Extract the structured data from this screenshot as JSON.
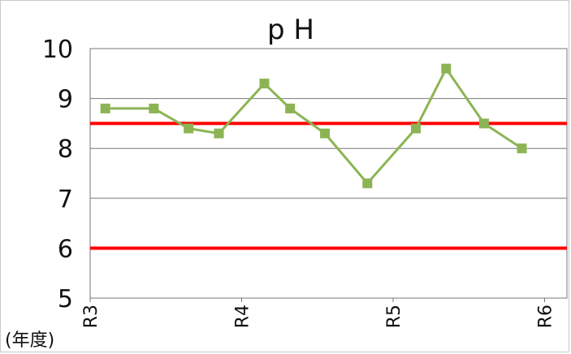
{
  "chart_data": {
    "type": "line",
    "title": "p H",
    "xlabel": "(年度)",
    "ylabel": "",
    "ylim": [
      5,
      10
    ],
    "yticks": [
      "10",
      "9",
      "8",
      "7",
      "6",
      "5"
    ],
    "x_ticks": [
      "R3",
      "R4",
      "R5",
      "R6"
    ],
    "grid": true,
    "series": [
      {
        "color": "#8cb454",
        "x": [
          0.1,
          0.42,
          0.65,
          0.85,
          1.15,
          1.32,
          1.55,
          1.83,
          2.15,
          2.35,
          2.6,
          2.85
        ],
        "values": [
          8.8,
          8.8,
          8.4,
          8.3,
          9.3,
          8.8,
          8.3,
          7.3,
          8.4,
          9.6,
          8.5,
          8.0
        ]
      }
    ],
    "reference_lines": [
      {
        "value": 8.5,
        "color": "#ff0000"
      },
      {
        "value": 6.0,
        "color": "#ff0000"
      }
    ]
  }
}
